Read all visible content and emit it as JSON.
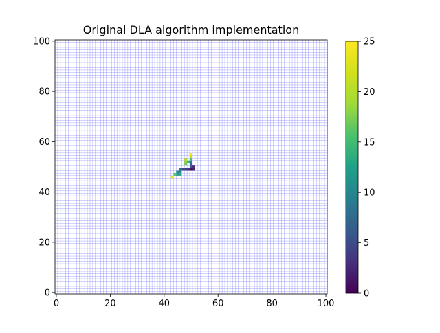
{
  "chart_data": {
    "type": "heatmap",
    "title": "Original DLA algorithm implementation",
    "xlabel": "",
    "ylabel": "",
    "xlim": [
      -0.5,
      100.5
    ],
    "ylim": [
      -0.5,
      100.5
    ],
    "xticks": [
      0,
      20,
      40,
      60,
      80,
      100
    ],
    "yticks": [
      0,
      20,
      40,
      60,
      80,
      100
    ],
    "grid": true,
    "grid_color": "#0000ff",
    "colormap": "viridis",
    "colorbar": {
      "range": [
        0,
        25
      ],
      "ticks": [
        0,
        5,
        10,
        15,
        20,
        25
      ]
    },
    "cells": [
      {
        "x": 50,
        "y": 49,
        "value": 1
      },
      {
        "x": 51,
        "y": 49,
        "value": 2
      },
      {
        "x": 49,
        "y": 49,
        "value": 3
      },
      {
        "x": 48,
        "y": 49,
        "value": 4
      },
      {
        "x": 51,
        "y": 50,
        "value": 3
      },
      {
        "x": 47,
        "y": 49,
        "value": 5
      },
      {
        "x": 50,
        "y": 50,
        "value": 6
      },
      {
        "x": 50,
        "y": 51,
        "value": 7
      },
      {
        "x": 46,
        "y": 49,
        "value": 8
      },
      {
        "x": 45,
        "y": 48,
        "value": 10
      },
      {
        "x": 46,
        "y": 48,
        "value": 11
      },
      {
        "x": 45,
        "y": 47,
        "value": 12
      },
      {
        "x": 46,
        "y": 47,
        "value": 13
      },
      {
        "x": 49,
        "y": 52,
        "value": 14
      },
      {
        "x": 50,
        "y": 53,
        "value": 15
      },
      {
        "x": 44,
        "y": 47,
        "value": 16
      },
      {
        "x": 48,
        "y": 51,
        "value": 17
      },
      {
        "x": 48,
        "y": 52,
        "value": 18
      },
      {
        "x": 50,
        "y": 52,
        "value": 9
      },
      {
        "x": 48,
        "y": 53,
        "value": 20
      },
      {
        "x": 50,
        "y": 54,
        "value": 21
      },
      {
        "x": 43,
        "y": 46,
        "value": 23
      },
      {
        "x": 50,
        "y": 55,
        "value": 24
      }
    ]
  }
}
